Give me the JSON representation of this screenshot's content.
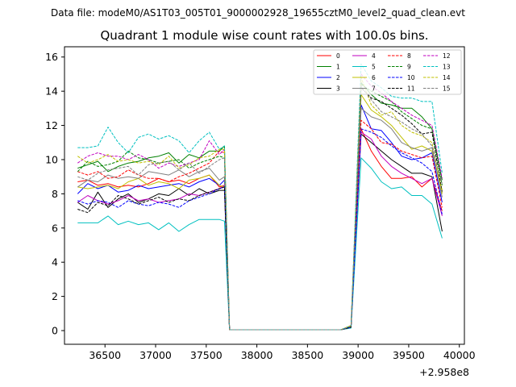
{
  "suptitle": "Data file: modeM0/AS1T03_005T01_9000002928_19655cztM0_level2_quad_clean.evt",
  "chart_data": {
    "type": "line",
    "title": "Quadrant 1 module wise count rates with 100.0s bins.",
    "xlabel": "",
    "ylabel": "",
    "x_offset_label": "+2.958e8",
    "xlim": [
      36100,
      40050
    ],
    "ylim": [
      -0.8,
      16.6
    ],
    "grid": false,
    "legend_position": "top-right",
    "x_ticks": [
      36500,
      37000,
      37500,
      38000,
      38500,
      39000,
      39500,
      40000
    ],
    "x_tick_labels": [
      "36500",
      "37000",
      "37500",
      "38000",
      "38500",
      "39000",
      "39500",
      "40000"
    ],
    "y_ticks": [
      0,
      2,
      4,
      6,
      8,
      10,
      12,
      14,
      16
    ],
    "y_tick_labels": [
      "0",
      "2",
      "4",
      "6",
      "8",
      "10",
      "12",
      "14",
      "16"
    ],
    "x": [
      36230,
      36330,
      36430,
      36530,
      36630,
      36730,
      36830,
      36930,
      37030,
      37130,
      37230,
      37330,
      37430,
      37530,
      37630,
      37680,
      37730,
      37830,
      37930,
      38030,
      38130,
      38230,
      38330,
      38430,
      38530,
      38630,
      38730,
      38830,
      38930,
      39030,
      39130,
      39230,
      39330,
      39430,
      39530,
      39630,
      39730,
      39830
    ],
    "series": [
      {
        "name": "0",
        "color": "#ff0000",
        "dash": "solid",
        "values": [
          8.7,
          8.8,
          8.5,
          8.6,
          8.4,
          8.5,
          8.4,
          8.6,
          8.9,
          8.7,
          8.8,
          8.6,
          8.9,
          9.1,
          8.4,
          8.5,
          0.05,
          0.05,
          0.05,
          0.05,
          0.05,
          0.05,
          0.05,
          0.05,
          0.05,
          0.05,
          0.05,
          0.05,
          0.2,
          11.8,
          10.5,
          9.6,
          8.9,
          8.9,
          9.0,
          8.4,
          8.9,
          7.0
        ]
      },
      {
        "name": "1",
        "color": "#008000",
        "dash": "solid",
        "values": [
          9.5,
          9.7,
          9.9,
          9.3,
          9.6,
          9.8,
          9.9,
          10.1,
          10.2,
          10.4,
          9.8,
          10.3,
          10.1,
          10.5,
          10.5,
          10.8,
          0.05,
          0.05,
          0.05,
          0.05,
          0.05,
          0.05,
          0.05,
          0.05,
          0.05,
          0.05,
          0.05,
          0.05,
          0.25,
          14.5,
          13.8,
          13.3,
          13.2,
          13.0,
          13.0,
          12.5,
          11.8,
          8.8
        ]
      },
      {
        "name": "2",
        "color": "#0000ff",
        "dash": "solid",
        "values": [
          8.0,
          8.6,
          8.3,
          8.5,
          8.1,
          8.2,
          8.5,
          8.3,
          8.4,
          8.5,
          8.6,
          8.4,
          8.7,
          8.9,
          8.5,
          8.8,
          0.05,
          0.05,
          0.05,
          0.05,
          0.05,
          0.05,
          0.05,
          0.05,
          0.05,
          0.05,
          0.05,
          0.05,
          0.2,
          13.2,
          11.8,
          11.7,
          11.0,
          10.2,
          10.0,
          10.1,
          10.4,
          7.5
        ]
      },
      {
        "name": "3",
        "color": "#000000",
        "dash": "solid",
        "values": [
          7.5,
          7.1,
          8.1,
          7.2,
          7.7,
          8.0,
          7.5,
          7.7,
          8.0,
          7.9,
          8.3,
          7.9,
          8.3,
          8.0,
          8.2,
          8.2,
          0.05,
          0.05,
          0.05,
          0.05,
          0.05,
          0.05,
          0.05,
          0.05,
          0.05,
          0.05,
          0.05,
          0.05,
          0.2,
          11.5,
          11.0,
          10.5,
          10.0,
          9.6,
          9.2,
          9.2,
          9.0,
          5.8
        ]
      },
      {
        "name": "4",
        "color": "#c000c0",
        "dash": "solid",
        "values": [
          7.5,
          7.9,
          7.6,
          7.4,
          7.6,
          7.9,
          7.6,
          7.7,
          7.5,
          7.6,
          7.7,
          8.0,
          7.9,
          8.1,
          8.3,
          8.5,
          0.05,
          0.05,
          0.05,
          0.05,
          0.05,
          0.05,
          0.05,
          0.05,
          0.05,
          0.05,
          0.05,
          0.05,
          0.2,
          11.6,
          11.2,
          10.2,
          9.6,
          9.2,
          8.9,
          8.6,
          8.9,
          6.7
        ]
      },
      {
        "name": "5",
        "color": "#00c0c0",
        "dash": "solid",
        "values": [
          6.3,
          6.3,
          6.3,
          6.7,
          6.2,
          6.4,
          6.2,
          6.3,
          5.9,
          6.3,
          5.8,
          6.2,
          6.5,
          6.5,
          6.5,
          6.4,
          0.05,
          0.05,
          0.05,
          0.05,
          0.05,
          0.05,
          0.05,
          0.05,
          0.05,
          0.05,
          0.05,
          0.05,
          0.15,
          10.1,
          9.5,
          8.7,
          8.3,
          8.4,
          7.9,
          7.9,
          7.4,
          5.4
        ]
      },
      {
        "name": "6",
        "color": "#c0c000",
        "dash": "solid",
        "values": [
          8.4,
          8.3,
          8.4,
          8.5,
          8.3,
          8.7,
          8.9,
          8.5,
          8.7,
          8.6,
          8.3,
          8.8,
          8.9,
          9.1,
          8.5,
          8.4,
          0.05,
          0.05,
          0.05,
          0.05,
          0.05,
          0.05,
          0.05,
          0.05,
          0.05,
          0.05,
          0.05,
          0.05,
          0.2,
          13.8,
          12.9,
          12.5,
          12.0,
          11.3,
          10.6,
          10.8,
          10.5,
          8.2
        ]
      },
      {
        "name": "7",
        "color": "#808080",
        "dash": "solid",
        "values": [
          8.4,
          8.8,
          8.7,
          9.1,
          8.9,
          9.0,
          8.9,
          9.3,
          9.2,
          9.1,
          9.4,
          9.0,
          9.3,
          9.5,
          8.8,
          9.0,
          0.05,
          0.05,
          0.05,
          0.05,
          0.05,
          0.05,
          0.05,
          0.05,
          0.05,
          0.05,
          0.05,
          0.05,
          0.2,
          13.0,
          12.5,
          12.3,
          11.8,
          11.0,
          10.7,
          10.5,
          10.7,
          7.8
        ]
      },
      {
        "name": "8",
        "color": "#ff0000",
        "dash": "dashed",
        "values": [
          9.3,
          9.1,
          9.3,
          8.9,
          9.0,
          9.4,
          9.1,
          8.9,
          8.9,
          8.7,
          9.0,
          9.2,
          9.5,
          9.8,
          10.5,
          10.4,
          0.05,
          0.05,
          0.05,
          0.05,
          0.05,
          0.05,
          0.05,
          0.05,
          0.05,
          0.05,
          0.05,
          0.05,
          0.2,
          12.3,
          11.8,
          11.0,
          10.9,
          10.5,
          10.3,
          10.1,
          10.2,
          7.2
        ]
      },
      {
        "name": "9",
        "color": "#008000",
        "dash": "dashed",
        "values": [
          9.3,
          9.9,
          9.6,
          9.7,
          9.9,
          10.5,
          10.1,
          10.0,
          9.8,
          9.9,
          10.0,
          9.5,
          9.8,
          10.0,
          10.2,
          10.1,
          0.05,
          0.05,
          0.05,
          0.05,
          0.05,
          0.05,
          0.05,
          0.05,
          0.05,
          0.05,
          0.05,
          0.05,
          0.25,
          14.4,
          14.0,
          13.7,
          13.4,
          12.8,
          12.4,
          12.0,
          11.8,
          8.5
        ]
      },
      {
        "name": "10",
        "color": "#0000ff",
        "dash": "dashed",
        "values": [
          7.6,
          7.4,
          7.6,
          7.5,
          7.2,
          7.6,
          7.4,
          7.3,
          7.5,
          7.4,
          7.2,
          7.6,
          7.8,
          8.0,
          8.3,
          8.4,
          0.05,
          0.05,
          0.05,
          0.05,
          0.05,
          0.05,
          0.05,
          0.05,
          0.05,
          0.05,
          0.05,
          0.05,
          0.2,
          11.8,
          11.6,
          11.3,
          10.8,
          10.4,
          10.1,
          9.8,
          9.3,
          6.8
        ]
      },
      {
        "name": "11",
        "color": "#000000",
        "dash": "dashed",
        "values": [
          7.1,
          6.9,
          7.5,
          7.3,
          7.9,
          7.7,
          7.4,
          7.6,
          7.8,
          7.5,
          7.7,
          7.6,
          7.9,
          8.1,
          8.3,
          8.4,
          0.05,
          0.05,
          0.05,
          0.05,
          0.05,
          0.05,
          0.05,
          0.05,
          0.05,
          0.05,
          0.05,
          0.05,
          0.2,
          14.2,
          13.6,
          13.4,
          13.0,
          12.6,
          12.1,
          11.5,
          11.6,
          8.1
        ]
      },
      {
        "name": "12",
        "color": "#c000c0",
        "dash": "dashed",
        "values": [
          9.8,
          10.2,
          10.4,
          10.2,
          10.2,
          10.0,
          10.3,
          10.0,
          9.5,
          9.8,
          9.6,
          9.8,
          10.0,
          11.1,
          10.3,
          10.6,
          0.05,
          0.05,
          0.05,
          0.05,
          0.05,
          0.05,
          0.05,
          0.05,
          0.05,
          0.05,
          0.05,
          0.05,
          0.3,
          15.0,
          14.3,
          13.9,
          13.4,
          13.0,
          12.6,
          12.3,
          12.0,
          8.9
        ]
      },
      {
        "name": "13",
        "color": "#00c0c0",
        "dash": "dashed",
        "values": [
          10.7,
          10.7,
          10.8,
          11.9,
          11.0,
          10.4,
          11.3,
          11.5,
          11.2,
          11.4,
          11.1,
          10.4,
          11.1,
          11.6,
          10.6,
          10.8,
          0.05,
          0.05,
          0.05,
          0.05,
          0.05,
          0.05,
          0.05,
          0.05,
          0.05,
          0.05,
          0.05,
          0.05,
          0.3,
          15.6,
          14.6,
          14.2,
          13.7,
          13.6,
          13.6,
          13.4,
          13.4,
          9.2
        ]
      },
      {
        "name": "14",
        "color": "#c0c000",
        "dash": "dashed",
        "values": [
          10.2,
          9.8,
          10.0,
          10.3,
          9.9,
          10.0,
          9.8,
          9.9,
          9.7,
          10.2,
          9.5,
          9.7,
          10.1,
          10.2,
          10.6,
          10.6,
          0.05,
          0.05,
          0.05,
          0.05,
          0.05,
          0.05,
          0.05,
          0.05,
          0.05,
          0.05,
          0.05,
          0.05,
          0.3,
          14.8,
          13.2,
          12.6,
          12.8,
          12.0,
          11.6,
          11.4,
          11.0,
          8.0
        ]
      },
      {
        "name": "15",
        "color": "#808080",
        "dash": "dashed",
        "values": [
          9.0,
          8.8,
          9.2,
          9.4,
          9.5,
          9.6,
          9.1,
          9.7,
          9.8,
          9.9,
          9.4,
          9.8,
          9.2,
          9.6,
          10.0,
          10.1,
          0.05,
          0.05,
          0.05,
          0.05,
          0.05,
          0.05,
          0.05,
          0.05,
          0.05,
          0.05,
          0.05,
          0.05,
          0.25,
          14.3,
          13.5,
          12.8,
          12.5,
          12.2,
          11.8,
          11.5,
          10.8,
          8.6
        ]
      }
    ]
  }
}
